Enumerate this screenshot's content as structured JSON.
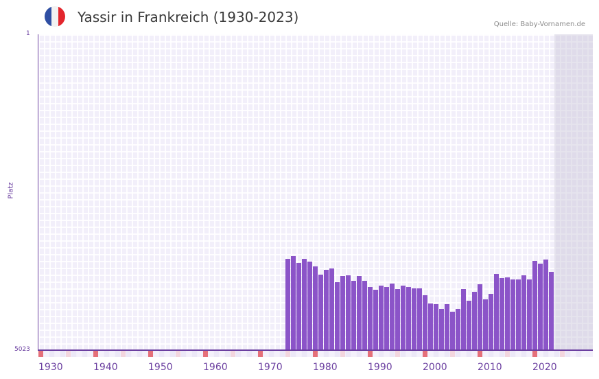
{
  "header": {
    "title": "Yassir in Frankreich (1930-2023)",
    "source": "Quelle: Baby-Vornamen.de",
    "flag_colors": [
      "#2f4fa3",
      "#f2f2f2",
      "#e3262d"
    ]
  },
  "colors": {
    "bar": "#8b54c8",
    "axis": "#6b3fa0",
    "decade_marker": "#e5707a",
    "half_decade_marker": "#f3d6de"
  },
  "chart_data": {
    "type": "bar",
    "title": "Yassir in Frankreich (1930-2023)",
    "xlabel": "",
    "ylabel": "Platz",
    "y_inverted": true,
    "ylim": [
      1,
      5023
    ],
    "xlim": [
      1930,
      2029
    ],
    "x_ticks": [
      1930,
      1940,
      1950,
      1960,
      1970,
      1980,
      1990,
      2000,
      2010,
      2020
    ],
    "y_ticks": [
      "1",
      "5023"
    ],
    "grid": true,
    "categories": [
      1975,
      1976,
      1977,
      1978,
      1979,
      1980,
      1981,
      1982,
      1983,
      1984,
      1985,
      1986,
      1987,
      1988,
      1989,
      1990,
      1991,
      1992,
      1993,
      1994,
      1995,
      1996,
      1997,
      1998,
      1999,
      2000,
      2001,
      2002,
      2003,
      2004,
      2005,
      2006,
      2007,
      2008,
      2009,
      2010,
      2011,
      2012,
      2013,
      2014,
      2015,
      2016,
      2017,
      2018,
      2019,
      2020,
      2021,
      2022,
      2023
    ],
    "values": [
      3571,
      3527,
      3636,
      3571,
      3615,
      3691,
      3822,
      3746,
      3724,
      3942,
      3844,
      3833,
      3920,
      3844,
      3920,
      4019,
      4062,
      3997,
      4019,
      3964,
      4051,
      3997,
      4019,
      4040,
      4040,
      4150,
      4281,
      4291,
      4368,
      4291,
      4411,
      4368,
      4051,
      4237,
      4095,
      3975,
      4215,
      4128,
      3811,
      3877,
      3866,
      3899,
      3899,
      3833,
      3899,
      3604,
      3647,
      3582,
      3778
    ]
  },
  "axis": {
    "y_top": "1",
    "y_bottom": "5023",
    "y_label": "Platz",
    "x_labels": [
      "1930",
      "1940",
      "1950",
      "1960",
      "1970",
      "1980",
      "1990",
      "2000",
      "2010",
      "2020"
    ]
  }
}
